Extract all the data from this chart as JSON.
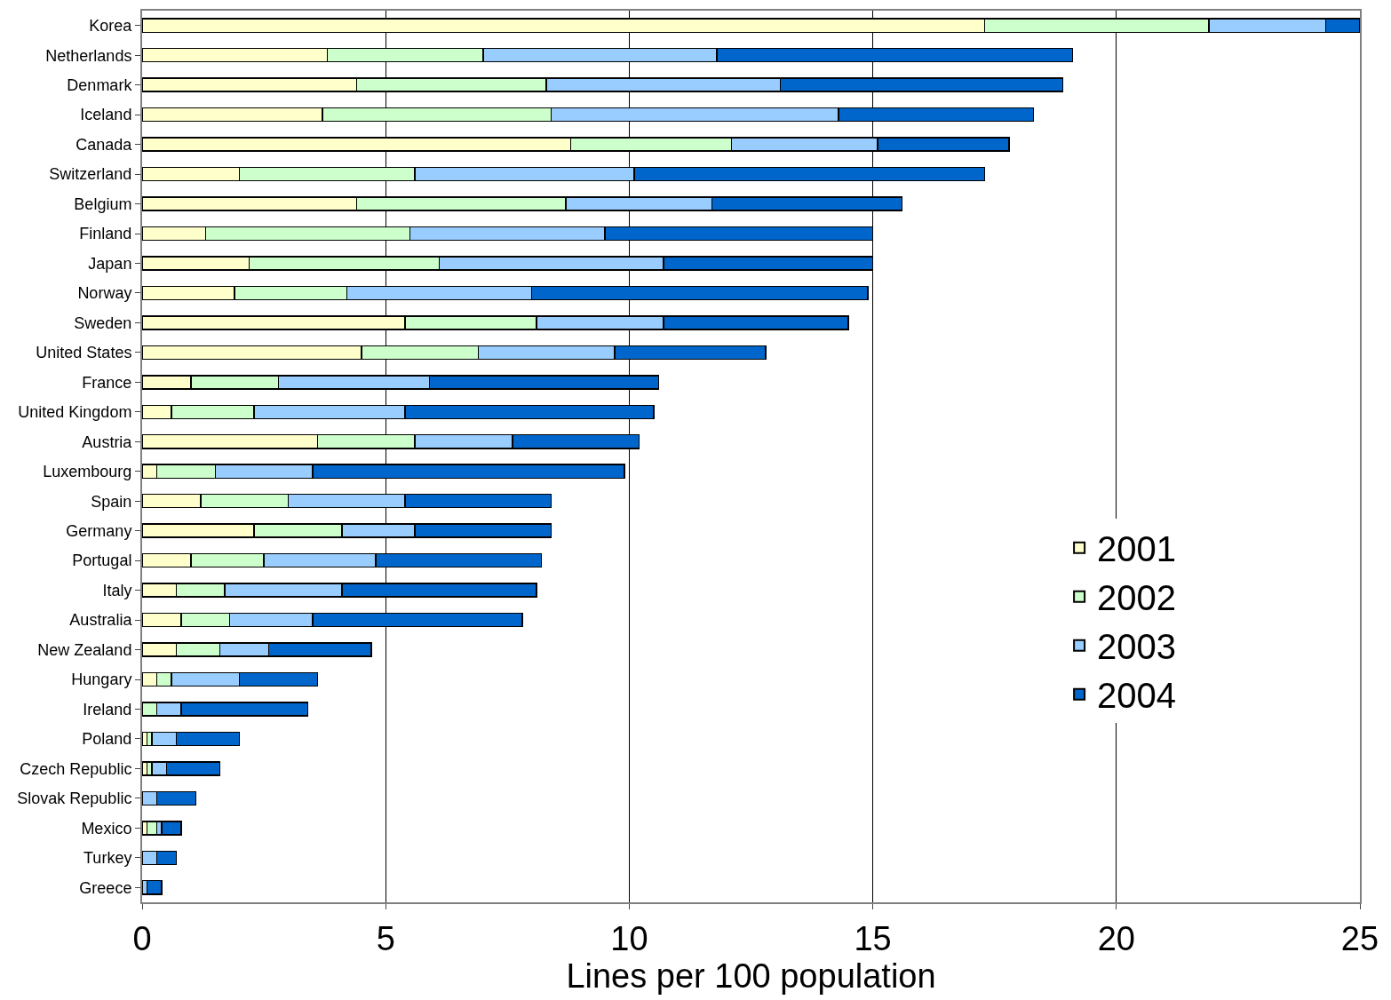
{
  "chart_data": {
    "type": "bar",
    "orientation": "horizontal",
    "stacked": true,
    "xlabel": "Lines per 100 population",
    "categories": [
      "Korea",
      "Netherlands",
      "Denmark",
      "Iceland",
      "Canada",
      "Switzerland",
      "Belgium",
      "Finland",
      "Japan",
      "Norway",
      "Sweden",
      "United States",
      "France",
      "United Kingdom",
      "Austria",
      "Luxembourg",
      "Spain",
      "Germany",
      "Portugal",
      "Italy",
      "Australia",
      "New Zealand",
      "Hungary",
      "Ireland",
      "Poland",
      "Czech Republic",
      "Slovak Republic",
      "Mexico",
      "Turkey",
      "Greece"
    ],
    "series": [
      {
        "name": "2001",
        "color": "#ffffcc",
        "values": [
          17.3,
          3.8,
          4.4,
          3.7,
          8.8,
          2.0,
          4.4,
          1.3,
          2.2,
          1.9,
          5.4,
          4.5,
          1.0,
          0.6,
          3.6,
          0.3,
          1.2,
          2.3,
          1.0,
          0.7,
          0.8,
          0.7,
          0.3,
          0,
          0.1,
          0.1,
          0,
          0.1,
          0,
          0
        ]
      },
      {
        "name": "2002",
        "color": "#ccffcc",
        "values": [
          4.6,
          3.2,
          3.9,
          4.7,
          3.3,
          3.6,
          4.3,
          4.2,
          3.9,
          2.3,
          2.7,
          2.4,
          1.8,
          1.7,
          2.0,
          1.2,
          1.8,
          1.8,
          1.5,
          1.0,
          1.0,
          0.9,
          0.3,
          0.3,
          0.1,
          0.1,
          0,
          0.2,
          0,
          0
        ]
      },
      {
        "name": "2003",
        "color": "#99ccff",
        "values": [
          2.4,
          4.8,
          4.8,
          5.9,
          3.0,
          4.5,
          3.0,
          4.0,
          4.6,
          3.8,
          2.6,
          2.8,
          3.1,
          3.1,
          2.0,
          2.0,
          2.4,
          1.5,
          2.3,
          2.4,
          1.7,
          1.0,
          1.4,
          0.5,
          0.5,
          0.3,
          0.3,
          0.1,
          0.3,
          0.1
        ]
      },
      {
        "name": "2004",
        "color": "#0066cc",
        "values": [
          0.7,
          7.3,
          5.8,
          4.0,
          2.7,
          7.2,
          3.9,
          5.5,
          4.3,
          6.9,
          3.8,
          3.1,
          4.7,
          5.1,
          2.6,
          6.4,
          3.0,
          2.8,
          3.4,
          4.0,
          4.3,
          2.1,
          1.6,
          2.6,
          1.3,
          1.1,
          0.8,
          0.4,
          0.4,
          0.3
        ]
      }
    ],
    "xlim": [
      0,
      25
    ],
    "xticks": [
      0,
      5,
      10,
      15,
      20,
      25
    ],
    "grid": "x",
    "legend": "right"
  }
}
